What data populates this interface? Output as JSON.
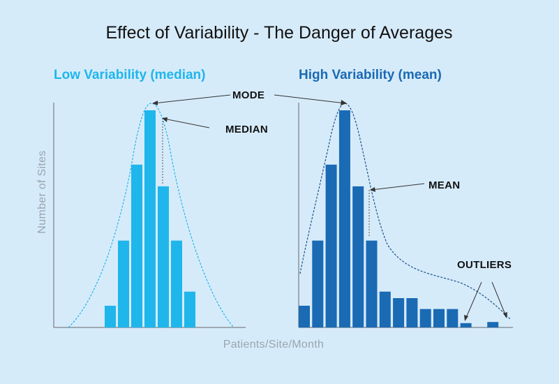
{
  "title": "Effect of Variability - The Danger of Averages",
  "xlabel": "Patients/Site/Month",
  "ylabel": "Number of Sites",
  "colors": {
    "low": "#1fb6ec",
    "high": "#1a6ab4",
    "background": "#d6ebfa",
    "axis": "#666666"
  },
  "chart_data": [
    {
      "type": "bar",
      "subtitle": "Low Variability (median)",
      "values": [
        2,
        8,
        15,
        20,
        13,
        8,
        3.3
      ],
      "ymax": 20,
      "annotations": [
        "MODE",
        "MEDIAN"
      ]
    },
    {
      "type": "bar",
      "subtitle": "High Variability (mean)",
      "values": [
        2,
        8,
        15,
        20,
        13,
        8,
        3.3,
        2.7,
        2.7,
        1.7,
        1.7,
        1.7,
        0.4,
        0,
        0.5
      ],
      "ymax": 20,
      "annotations": [
        "MEAN",
        "OUTLIERS"
      ]
    }
  ]
}
